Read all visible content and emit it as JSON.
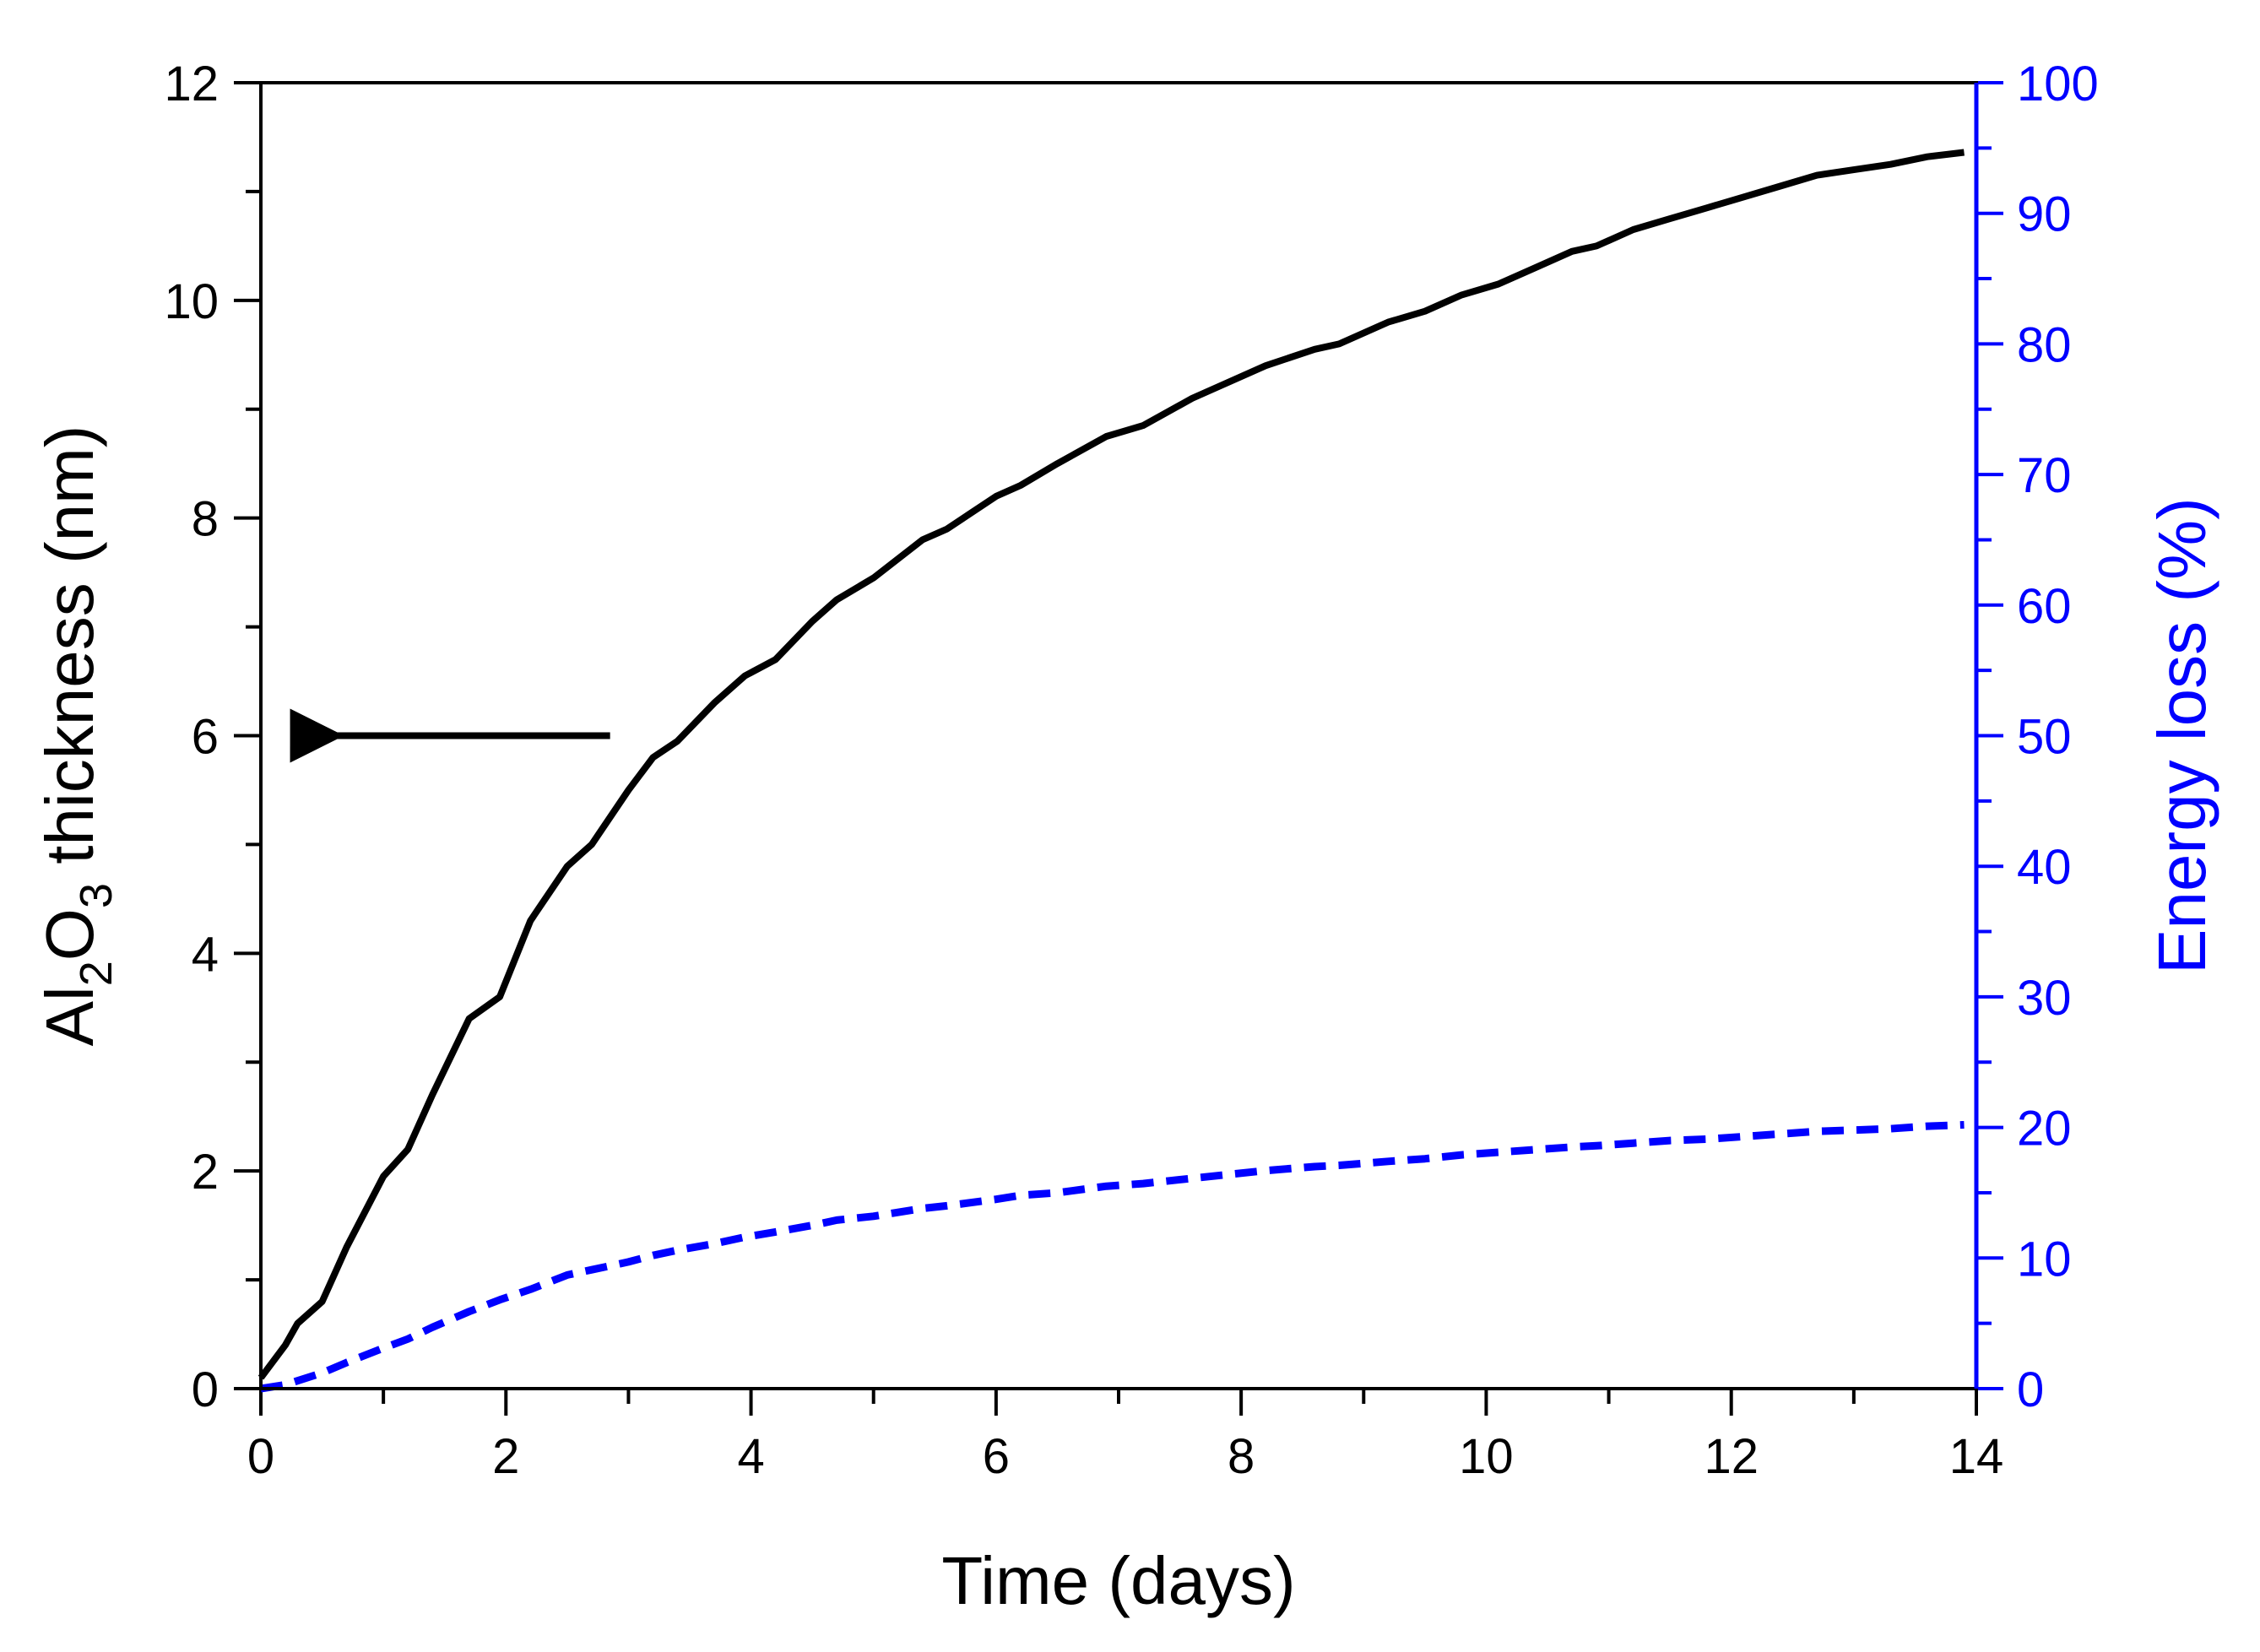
{
  "chart_data": {
    "type": "line",
    "title": "",
    "x": [
      0,
      0.2,
      0.3,
      0.5,
      0.7,
      1.0,
      1.2,
      1.4,
      1.7,
      1.95,
      2.2,
      2.5,
      2.7,
      3.0,
      3.2,
      3.4,
      3.7,
      3.95,
      4.2,
      4.5,
      4.7,
      5.0,
      5.4,
      5.6,
      6.0,
      6.2,
      6.5,
      6.9,
      7.2,
      7.6,
      7.8,
      8.2,
      8.6,
      8.8,
      9.2,
      9.5,
      9.8,
      10.1,
      10.4,
      10.7,
      10.9,
      11.2,
      11.5,
      11.8,
      12.1,
      12.4,
      12.7,
      13.0,
      13.3,
      13.6,
      13.9
    ],
    "xlabel": "Time (days)",
    "xlim": [
      0,
      14
    ],
    "xticks": [
      "0",
      "2",
      "4",
      "6",
      "8",
      "10",
      "12",
      "14"
    ],
    "x_major_tick_values": [
      0,
      2,
      4,
      6,
      8,
      10,
      12,
      14
    ],
    "series": [
      {
        "name": "Al2O3 thickness",
        "axis": "left",
        "style": "solid",
        "color": "#000000",
        "values": [
          0.1,
          0.4,
          0.6,
          0.8,
          1.3,
          1.95,
          2.2,
          2.7,
          3.4,
          3.6,
          4.3,
          4.8,
          5.0,
          5.5,
          5.8,
          5.95,
          6.3,
          6.55,
          6.7,
          7.05,
          7.25,
          7.45,
          7.8,
          7.9,
          8.2,
          8.3,
          8.5,
          8.75,
          8.85,
          9.1,
          9.2,
          9.4,
          9.55,
          9.6,
          9.8,
          9.9,
          10.05,
          10.15,
          10.3,
          10.45,
          10.5,
          10.65,
          10.75,
          10.85,
          10.95,
          11.05,
          11.15,
          11.2,
          11.25,
          11.32,
          11.36
        ]
      },
      {
        "name": "Energy loss",
        "axis": "right",
        "style": "dashed",
        "color": "#0000ff",
        "values": [
          0,
          0.3,
          0.6,
          1.2,
          2.0,
          3.1,
          3.8,
          4.7,
          5.9,
          6.8,
          7.6,
          8.7,
          9.1,
          9.7,
          10.2,
          10.6,
          11.1,
          11.6,
          12.0,
          12.5,
          12.9,
          13.2,
          13.8,
          14.0,
          14.5,
          14.8,
          15.0,
          15.5,
          15.7,
          16.1,
          16.3,
          16.7,
          17.0,
          17.1,
          17.4,
          17.6,
          17.9,
          18.1,
          18.3,
          18.5,
          18.6,
          18.8,
          19.0,
          19.1,
          19.3,
          19.5,
          19.7,
          19.8,
          19.9,
          20.1,
          20.2
        ]
      }
    ],
    "y_left": {
      "label_main": "Al",
      "label_sub1": "2",
      "label_mid": "O",
      "label_sub2": "3",
      "label_rest": " thickness (nm)",
      "ylim": [
        0,
        12
      ],
      "ticks": [
        "0",
        "2",
        "4",
        "6",
        "8",
        "10",
        "12"
      ],
      "major_tick_values": [
        0,
        2,
        4,
        6,
        8,
        10,
        12
      ],
      "color": "#000000"
    },
    "y_right": {
      "label": "Energy loss (%)",
      "ylim": [
        0,
        100
      ],
      "ticks": [
        "0",
        "10",
        "20",
        "30",
        "40",
        "50",
        "60",
        "70",
        "80",
        "90",
        "100"
      ],
      "major_tick_values": [
        0,
        10,
        20,
        30,
        40,
        50,
        60,
        70,
        80,
        90,
        100
      ],
      "color": "#0000ff"
    },
    "annotations": [
      {
        "type": "arrow",
        "direction": "left",
        "meaning": "thickness curve refers to left axis",
        "y_value": 6,
        "x_start": 2.85,
        "x_end": 0.5
      }
    ],
    "grid": false,
    "legend": "none"
  }
}
